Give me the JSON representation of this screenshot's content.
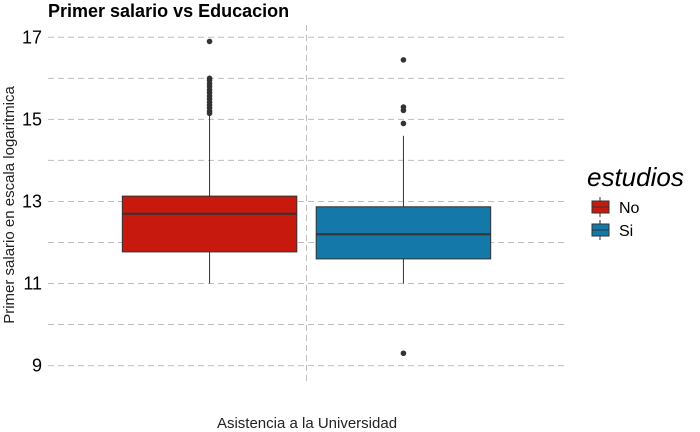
{
  "chart_data": {
    "type": "box",
    "title": "Primer salario vs Educacion",
    "xlabel": "Asistencia a la Universidad",
    "ylabel": "Primer salario en escala logaritmica",
    "ylim": [
      8.6,
      17.3
    ],
    "yticks": [
      9,
      11,
      13,
      15,
      17
    ],
    "grid": true,
    "legend": {
      "title": "estudios",
      "placement": "right",
      "entries": [
        "No",
        "Si"
      ]
    },
    "series": [
      {
        "name": "No",
        "color": "#c8190f",
        "min": 11.0,
        "q1": 11.77,
        "median": 12.7,
        "q3": 13.13,
        "max": 15.1,
        "outliers": [
          15.15,
          15.2,
          15.28,
          15.35,
          15.42,
          15.5,
          15.57,
          15.65,
          15.72,
          15.8,
          15.87,
          15.95,
          16.0,
          16.9
        ]
      },
      {
        "name": "Si",
        "color": "#1478a8",
        "min": 11.0,
        "q1": 11.6,
        "median": 12.2,
        "q3": 12.87,
        "max": 14.6,
        "outliers": [
          14.9,
          15.22,
          15.3,
          16.45,
          9.3
        ]
      }
    ]
  }
}
